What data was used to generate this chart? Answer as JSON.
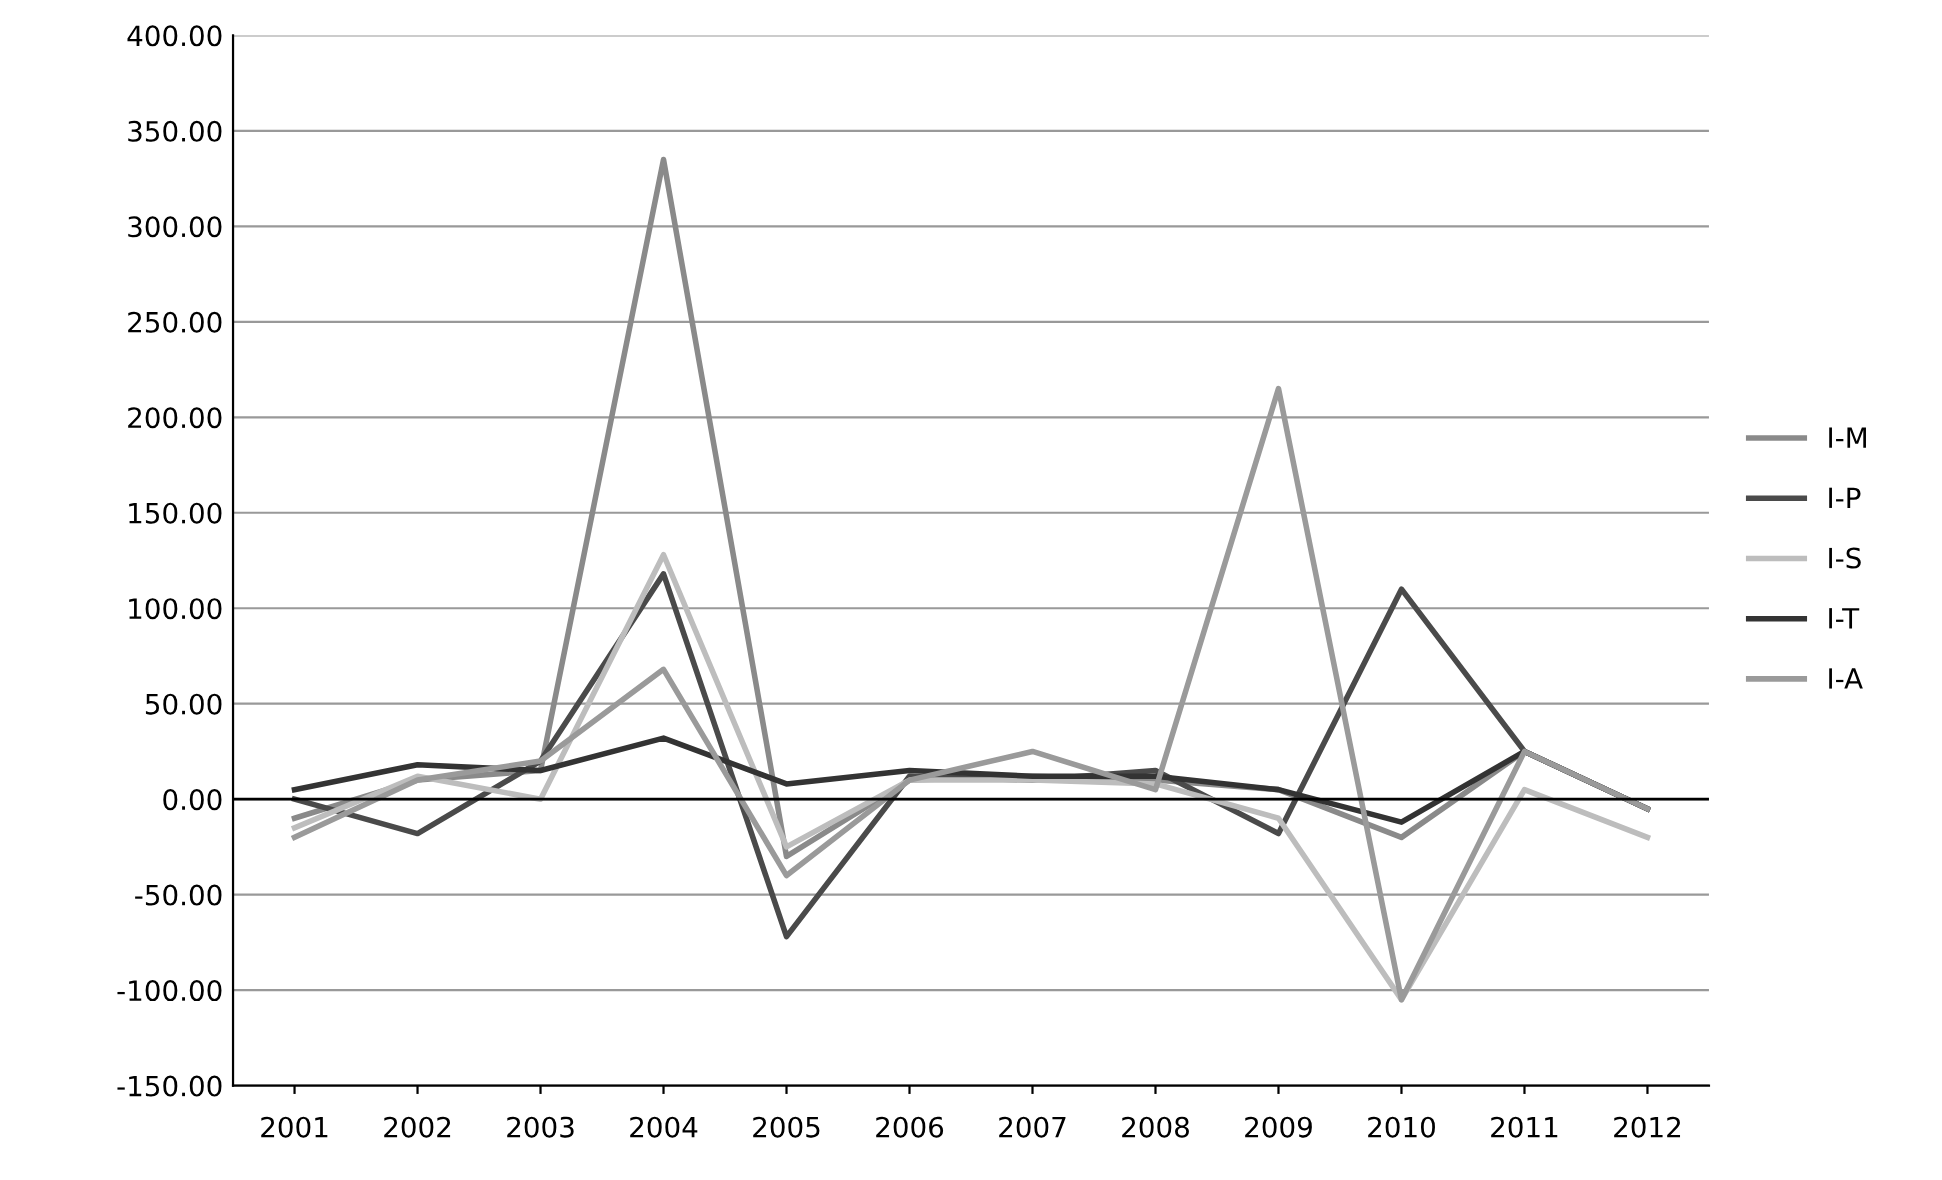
{
  "chart_data": {
    "type": "line",
    "categories": [
      "2001",
      "2002",
      "2003",
      "2004",
      "2005",
      "2006",
      "2007",
      "2008",
      "2009",
      "2010",
      "2011",
      "2012"
    ],
    "series": [
      {
        "name": "I-M",
        "color": "#8a8a8a",
        "values": [
          -10,
          10,
          15,
          335,
          -30,
          10,
          12,
          10,
          5,
          -20,
          25,
          -5
        ]
      },
      {
        "name": "I-P",
        "color": "#4a4a4a",
        "values": [
          0,
          -18,
          20,
          118,
          -72,
          12,
          10,
          15,
          -18,
          110,
          25,
          -5
        ]
      },
      {
        "name": "I-S",
        "color": "#bdbdbd",
        "values": [
          -15,
          12,
          0,
          128,
          -25,
          10,
          10,
          8,
          -10,
          -105,
          5,
          -20
        ]
      },
      {
        "name": "I-T",
        "color": "#333333",
        "values": [
          5,
          18,
          15,
          32,
          8,
          15,
          12,
          12,
          5,
          -12,
          25,
          -5
        ]
      },
      {
        "name": "I-A",
        "color": "#9a9a9a",
        "values": [
          -20,
          10,
          20,
          68,
          -40,
          10,
          25,
          5,
          215,
          -105,
          25,
          -5
        ]
      }
    ],
    "ylim": [
      -150,
      400
    ],
    "yticks": [
      {
        "value": -150,
        "label": "-150.00"
      },
      {
        "value": -100,
        "label": "-100.00"
      },
      {
        "value": -50,
        "label": "-50.00"
      },
      {
        "value": 0,
        "label": "0.00"
      },
      {
        "value": 50,
        "label": "50.00"
      },
      {
        "value": 100,
        "label": "100.00"
      },
      {
        "value": 150,
        "label": "150.00"
      },
      {
        "value": 200,
        "label": "200.00"
      },
      {
        "value": 250,
        "label": "250.00"
      },
      {
        "value": 300,
        "label": "300.00"
      },
      {
        "value": 350,
        "label": "350.00"
      },
      {
        "value": 400,
        "label": "400.00"
      }
    ],
    "grid": "y",
    "legend": "right",
    "marker": "none",
    "line_style": "solid"
  }
}
